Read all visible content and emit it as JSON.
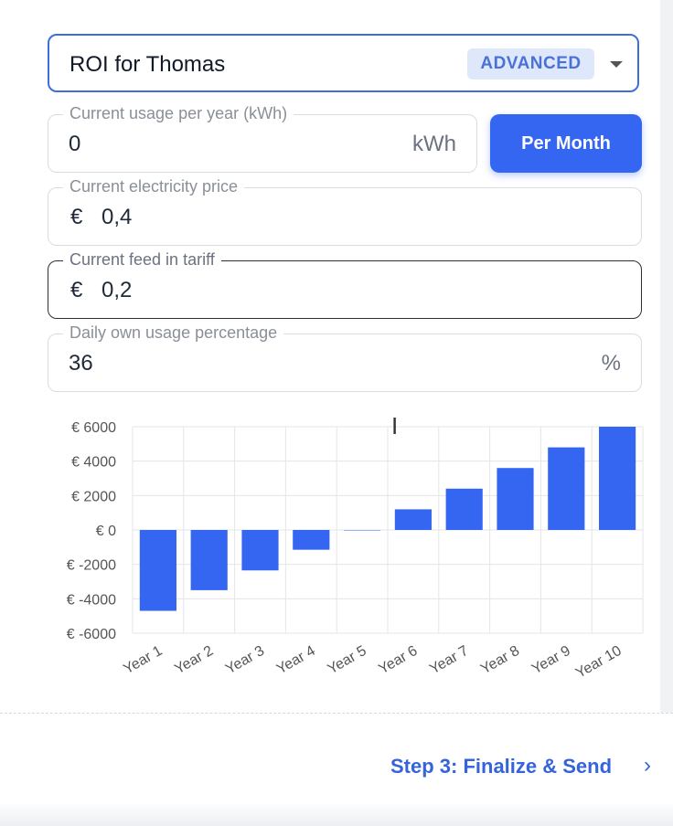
{
  "selector": {
    "value": "ROI for Thomas",
    "badge": "ADVANCED"
  },
  "fields": {
    "usage": {
      "label": "Current usage per year (kWh)",
      "value": "0",
      "unit": "kWh"
    },
    "toggle_button": "Per Month",
    "price": {
      "label": "Current electricity price",
      "prefix": "€",
      "value": "0,4"
    },
    "feed_in": {
      "label": "Current feed in tariff",
      "prefix": "€",
      "value": "0,2"
    },
    "own_usage": {
      "label": "Daily own usage percentage",
      "value": "36",
      "unit": "%"
    }
  },
  "chart_data": {
    "type": "bar",
    "categories": [
      "Year 1",
      "Year 2",
      "Year 3",
      "Year 4",
      "Year 5",
      "Year 6",
      "Year 7",
      "Year 8",
      "Year 9",
      "Year 10"
    ],
    "values": [
      -4700,
      -3500,
      -2350,
      -1150,
      0,
      1200,
      2400,
      3600,
      4800,
      6000
    ],
    "ylim": [
      -6000,
      6000
    ],
    "yticks": [
      6000,
      4000,
      2000,
      0,
      -2000,
      -4000,
      -6000
    ],
    "ytick_labels": [
      "€ 6000",
      "€ 4000",
      "€ 2000",
      "€ 0",
      "€ -2000",
      "€ -4000",
      "€ -6000"
    ],
    "grid": true,
    "bar_color": "#3566f2"
  },
  "footer": {
    "next_label": "Step 3: Finalize & Send",
    "chevron": "›"
  }
}
